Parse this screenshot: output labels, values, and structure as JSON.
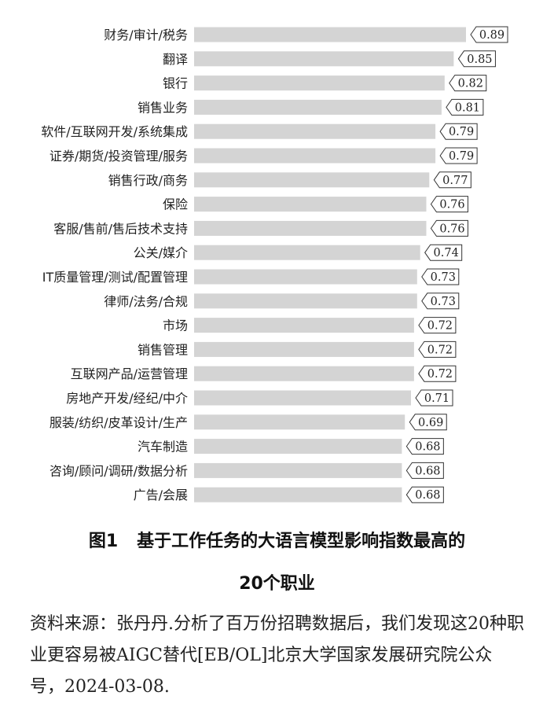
{
  "chart_data": {
    "type": "bar",
    "orientation": "horizontal",
    "categories": [
      "财务/审计/税务",
      "翻译",
      "银行",
      "销售业务",
      "软件/互联网开发/系统集成",
      "证券/期货/投资管理/服务",
      "销售行政/商务",
      "保险",
      "客服/售前/售后技术支持",
      "公关/媒介",
      "IT质量管理/测试/配置管理",
      "律师/法务/合规",
      "市场",
      "销售管理",
      "互联网产品/运营管理",
      "房地产开发/经纪/中介",
      "服装/纺织/皮革设计/生产",
      "汽车制造",
      "咨询/顾问/调研/数据分析",
      "广告/会展"
    ],
    "values": [
      0.89,
      0.85,
      0.82,
      0.81,
      0.79,
      0.79,
      0.77,
      0.76,
      0.76,
      0.74,
      0.73,
      0.73,
      0.72,
      0.72,
      0.72,
      0.71,
      0.69,
      0.68,
      0.68,
      0.68
    ],
    "value_labels": [
      "0.89",
      "0.85",
      "0.82",
      "0.81",
      "0.79",
      "0.79",
      "0.77",
      "0.76",
      "0.76",
      "0.74",
      "0.73",
      "0.73",
      "0.72",
      "0.72",
      "0.72",
      "0.71",
      "0.69",
      "0.68",
      "0.68",
      "0.68"
    ],
    "xlim": [
      0,
      0.89
    ],
    "bar_color": "#d4d4d4",
    "grid": false,
    "legend": "none"
  },
  "caption": {
    "figure_no": "图1",
    "title_line1": "基于工作任务的大语言模型影响指数最高的",
    "title_line2": "20个职业"
  },
  "source_note": "资料来源：张丹丹.分析了百万份招聘数据后，我们发现这20种职业更容易被AIGC替代[EB/OL]北京大学国家发展研究院公众号，2024-03-08."
}
